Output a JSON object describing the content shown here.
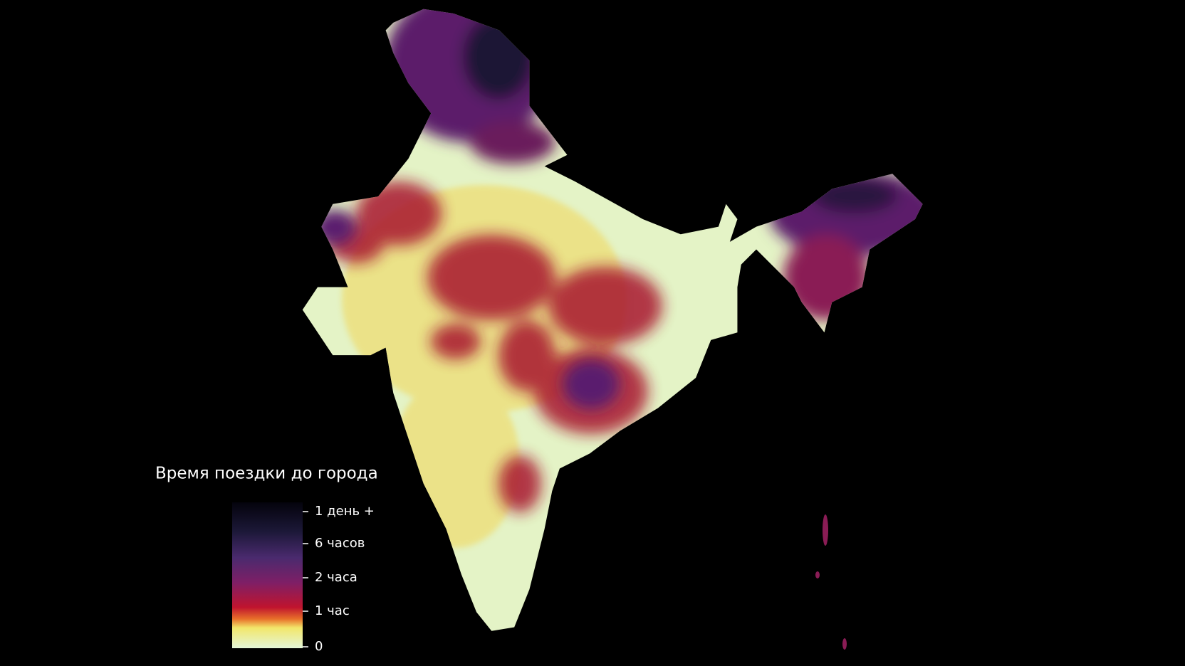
{
  "legend": {
    "title": "Время поездки до города",
    "labels": [
      "1 день +",
      "6 часов",
      "2 часа",
      "1 час",
      "0"
    ]
  }
}
